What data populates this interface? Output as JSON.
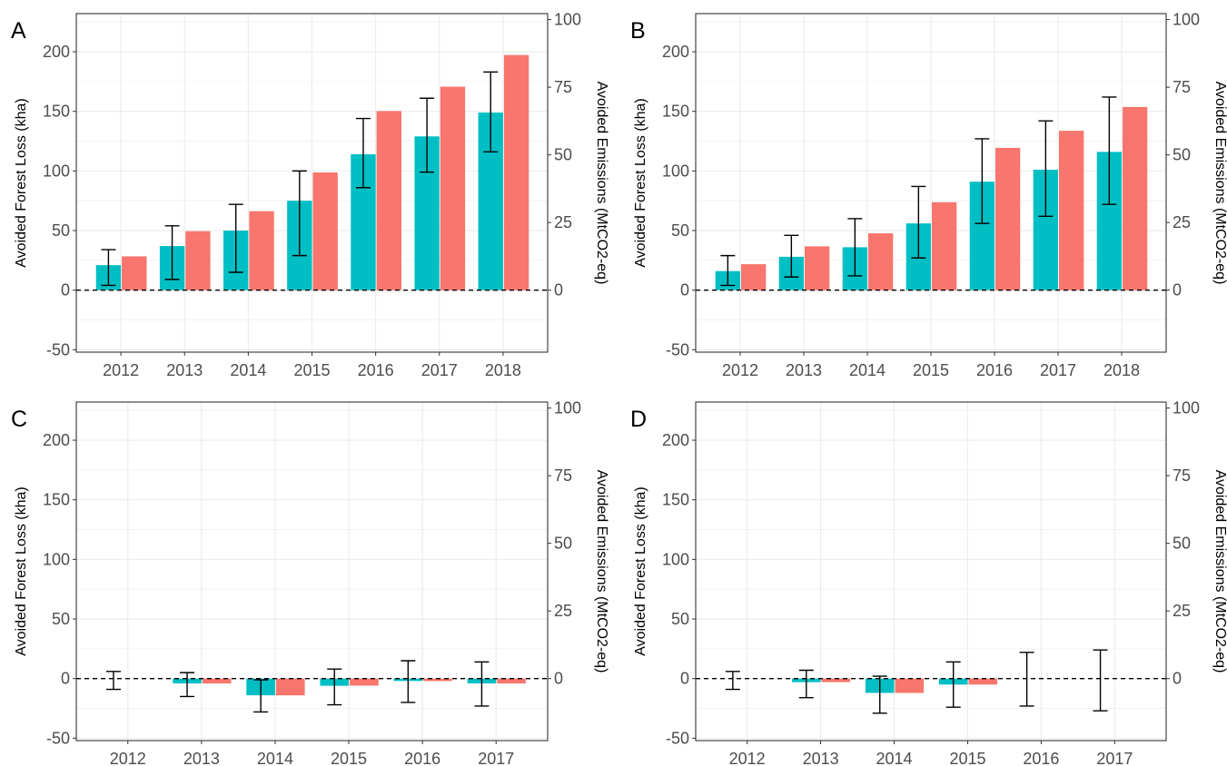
{
  "colors": {
    "forest_loss": "#00BFC4",
    "emissions": "#F8766D",
    "grid": "#EBEBEB",
    "axis": "#333333",
    "text": "#4D4D4D",
    "zero_line": "#000000"
  },
  "chart_data": [
    {
      "type": "bar",
      "panel_label": "A",
      "ylabel": "Avoided Forest Loss (kha)",
      "y2label": "Avoided Emissions (MtCO2-eq)",
      "ylim": [
        -52,
        232
      ],
      "y_ticks": [
        -50,
        0,
        50,
        100,
        150,
        200
      ],
      "y2_ticks": [
        0,
        25,
        50,
        75,
        100
      ],
      "y2_factor": 2.27,
      "grid": true,
      "categories": [
        "2012",
        "2013",
        "2014",
        "2015",
        "2016",
        "2017",
        "2018"
      ],
      "series": [
        {
          "key": "forest_loss",
          "values": [
            21,
            37,
            50,
            75,
            114,
            129,
            149
          ],
          "err_low": [
            4,
            9,
            15,
            29,
            86,
            99,
            116
          ],
          "err_high": [
            34,
            54,
            72,
            100,
            144,
            161,
            183
          ]
        },
        {
          "key": "emissions",
          "values": [
            12.5,
            21.8,
            29.2,
            43.5,
            66.2,
            75.2,
            86.9
          ]
        }
      ]
    },
    {
      "type": "bar",
      "panel_label": "B",
      "ylabel": "Avoided Forest Loss (kha)",
      "y2label": "Avoided Emissions (MtCO2-eq)",
      "ylim": [
        -52,
        232
      ],
      "y_ticks": [
        -50,
        0,
        50,
        100,
        150,
        200
      ],
      "y2_ticks": [
        0,
        25,
        50,
        75,
        100
      ],
      "y2_factor": 2.27,
      "grid": true,
      "categories": [
        "2012",
        "2013",
        "2014",
        "2015",
        "2016",
        "2017",
        "2018"
      ],
      "series": [
        {
          "key": "forest_loss",
          "values": [
            16,
            28,
            36,
            56,
            91,
            101,
            116
          ],
          "err_low": [
            4,
            11,
            12,
            27,
            56,
            62,
            72
          ],
          "err_high": [
            29,
            46,
            60,
            87,
            127,
            142,
            162
          ]
        },
        {
          "key": "emissions",
          "values": [
            9.6,
            16.2,
            21.0,
            32.5,
            52.6,
            58.9,
            67.7
          ]
        }
      ]
    },
    {
      "type": "bar",
      "panel_label": "C",
      "ylabel": "Avoided Forest Loss (kha)",
      "y2label": "Avoided Emissions (MtCO2-eq)",
      "ylim": [
        -52,
        232
      ],
      "y_ticks": [
        -50,
        0,
        50,
        100,
        150,
        200
      ],
      "y2_ticks": [
        0,
        25,
        50,
        75,
        100
      ],
      "y2_factor": 2.27,
      "grid": true,
      "categories": [
        "2012",
        "2013",
        "2014",
        "2015",
        "2016",
        "2017"
      ],
      "series": [
        {
          "key": "forest_loss",
          "values": [
            0,
            -4,
            -14,
            -6,
            -2,
            -4
          ],
          "err_low": [
            -9,
            -15,
            -28,
            -22,
            -20,
            -23
          ],
          "err_high": [
            6,
            5,
            -1,
            8,
            15,
            14
          ]
        },
        {
          "key": "emissions",
          "values": [
            0,
            -1.8,
            -6.2,
            -2.6,
            -0.9,
            -1.8
          ]
        }
      ]
    },
    {
      "type": "bar",
      "panel_label": "D",
      "ylabel": "Avoided Forest Loss (kha)",
      "y2label": "Avoided Emissions (MtCO2-eq)",
      "ylim": [
        -52,
        232
      ],
      "y_ticks": [
        -50,
        0,
        50,
        100,
        150,
        200
      ],
      "y2_ticks": [
        0,
        25,
        50,
        75,
        100
      ],
      "y2_factor": 2.27,
      "grid": true,
      "categories": [
        "2012",
        "2013",
        "2014",
        "2015",
        "2016",
        "2017"
      ],
      "series": [
        {
          "key": "forest_loss",
          "values": [
            0,
            -3,
            -12,
            -5,
            0,
            0
          ],
          "err_low": [
            -9,
            -16,
            -29,
            -24,
            -23,
            -27
          ],
          "err_high": [
            6,
            7,
            2,
            14,
            22,
            24
          ]
        },
        {
          "key": "emissions",
          "values": [
            0,
            -1.3,
            -5.3,
            -2.2,
            0,
            0
          ]
        }
      ]
    }
  ]
}
